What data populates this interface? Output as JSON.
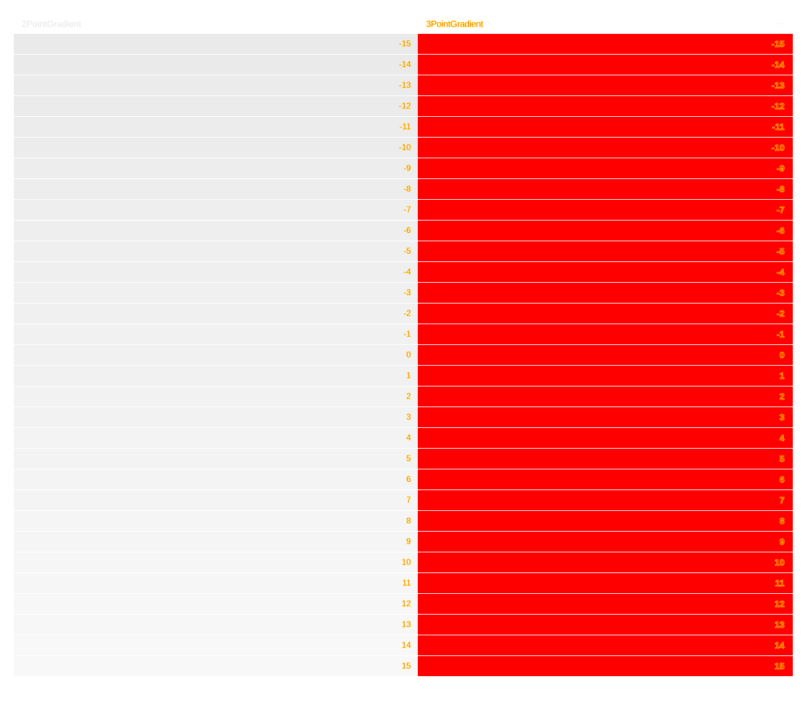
{
  "table": {
    "columns": [
      "2PointGradient",
      "3PointGradient"
    ],
    "more_label": "…",
    "rows": [
      {
        "v1": "-15",
        "v2": "-15"
      },
      {
        "v1": "-14",
        "v2": "-14"
      },
      {
        "v1": "-13",
        "v2": "-13"
      },
      {
        "v1": "-12",
        "v2": "-12"
      },
      {
        "v1": "-11",
        "v2": "-11"
      },
      {
        "v1": "-10",
        "v2": "-10"
      },
      {
        "v1": "-9",
        "v2": "-9"
      },
      {
        "v1": "-8",
        "v2": "-8"
      },
      {
        "v1": "-7",
        "v2": "-7"
      },
      {
        "v1": "-6",
        "v2": "-6"
      },
      {
        "v1": "-5",
        "v2": "-5"
      },
      {
        "v1": "-4",
        "v2": "-4"
      },
      {
        "v1": "-3",
        "v2": "-3"
      },
      {
        "v1": "-2",
        "v2": "-2"
      },
      {
        "v1": "-1",
        "v2": "-1"
      },
      {
        "v1": "0",
        "v2": "0"
      },
      {
        "v1": "1",
        "v2": "1"
      },
      {
        "v1": "2",
        "v2": "2"
      },
      {
        "v1": "3",
        "v2": "3"
      },
      {
        "v1": "4",
        "v2": "4"
      },
      {
        "v1": "5",
        "v2": "5"
      },
      {
        "v1": "6",
        "v2": "6"
      },
      {
        "v1": "7",
        "v2": "7"
      },
      {
        "v1": "8",
        "v2": "8"
      },
      {
        "v1": "9",
        "v2": "9"
      },
      {
        "v1": "10",
        "v2": "10"
      },
      {
        "v1": "11",
        "v2": "11"
      },
      {
        "v1": "12",
        "v2": "12"
      },
      {
        "v1": "13",
        "v2": "13"
      },
      {
        "v1": "14",
        "v2": "14"
      },
      {
        "v1": "15",
        "v2": "15"
      }
    ]
  },
  "colors": {
    "col1_start": "#eaeaea",
    "col1_end": "#f8f8f8",
    "col2_fill": "#ff0000",
    "text_fill": "#ff2a00",
    "text_outline": "#ffe600"
  }
}
